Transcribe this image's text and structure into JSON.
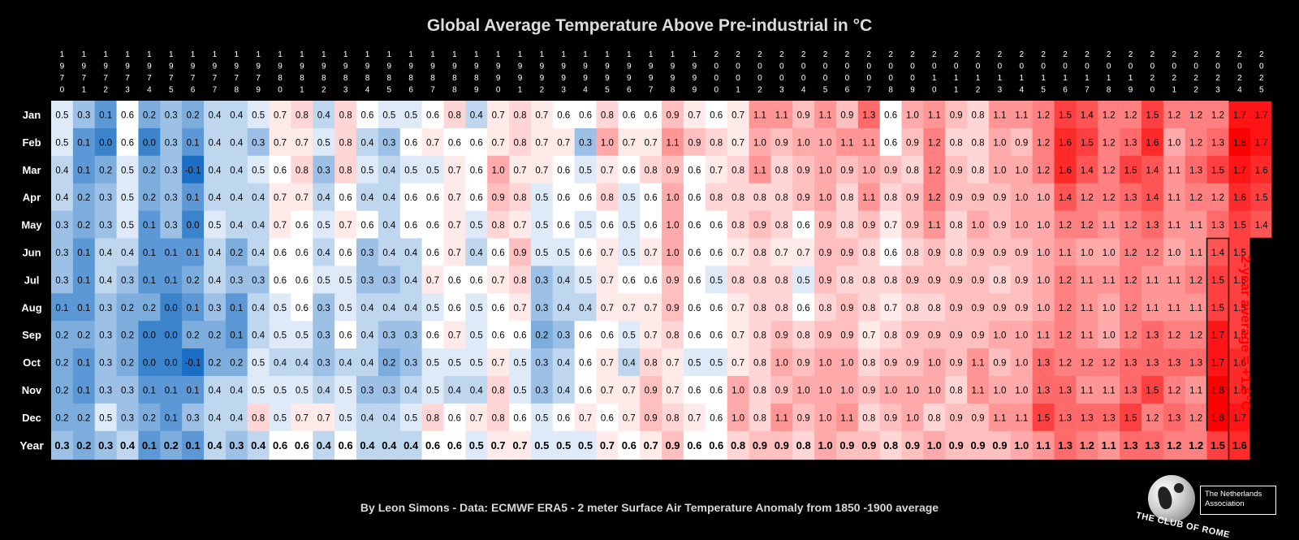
{
  "title": "Global Average Temperature Above Pre-industrial in °C",
  "footer": "By Leon Simons - Data: ECMWF ERA5 - 2 meter Surface Air Temperature Anomaly from 1850 -1900 average",
  "annotation": "2-year average = +1.6°C",
  "logo": {
    "name": "THE CLUB OF ROME",
    "association": "The Netherlands Association"
  },
  "colors": {
    "cold": "#1a6fc4",
    "neutral": "#ffffff",
    "warm": "#ff0000",
    "annotation": "#ff0000"
  },
  "chart_data": {
    "type": "heatmap",
    "title": "Global Average Temperature Above Pre-industrial in °C",
    "years": [
      1970,
      1971,
      1972,
      1973,
      1974,
      1975,
      1976,
      1977,
      1978,
      1979,
      1980,
      1981,
      1982,
      1983,
      1984,
      1985,
      1986,
      1987,
      1988,
      1989,
      1990,
      1991,
      1992,
      1993,
      1994,
      1995,
      1996,
      1997,
      1998,
      1999,
      2000,
      2001,
      2002,
      2003,
      2004,
      2005,
      2006,
      2007,
      2008,
      2009,
      2010,
      2011,
      2012,
      2013,
      2014,
      2015,
      2016,
      2017,
      2018,
      2019,
      2020,
      2021,
      2022,
      2023,
      2024,
      2025
    ],
    "rows": [
      {
        "label": "Jan",
        "values": [
          0.5,
          0.3,
          0.1,
          0.6,
          0.2,
          0.3,
          0.2,
          0.4,
          0.4,
          0.5,
          0.7,
          0.8,
          0.4,
          0.8,
          0.6,
          0.5,
          0.5,
          0.6,
          0.8,
          0.4,
          0.7,
          0.8,
          0.7,
          0.6,
          0.6,
          0.8,
          0.6,
          0.6,
          0.9,
          0.7,
          0.6,
          0.7,
          1.1,
          1.1,
          0.9,
          1.1,
          0.9,
          1.3,
          0.6,
          1.0,
          1.1,
          0.9,
          0.8,
          1.1,
          1.1,
          1.2,
          1.5,
          1.4,
          1.2,
          1.2,
          1.5,
          1.2,
          1.2,
          1.2,
          1.7,
          1.7
        ]
      },
      {
        "label": "Feb",
        "values": [
          0.5,
          0.1,
          0.0,
          0.6,
          0.0,
          0.3,
          0.1,
          0.4,
          0.4,
          0.3,
          0.7,
          0.7,
          0.5,
          0.8,
          0.4,
          0.3,
          0.6,
          0.7,
          0.6,
          0.6,
          0.7,
          0.8,
          0.7,
          0.7,
          0.3,
          1.0,
          0.7,
          0.7,
          1.1,
          0.9,
          0.8,
          0.7,
          1.0,
          0.9,
          1.0,
          1.0,
          1.1,
          1.1,
          0.6,
          0.9,
          1.2,
          0.8,
          0.8,
          1.0,
          0.9,
          1.2,
          1.6,
          1.5,
          1.2,
          1.3,
          1.6,
          1.0,
          1.2,
          1.3,
          1.8,
          1.7
        ]
      },
      {
        "label": "Mar",
        "values": [
          0.4,
          0.1,
          0.2,
          0.5,
          0.2,
          0.3,
          -0.1,
          0.4,
          0.4,
          0.5,
          0.6,
          0.8,
          0.3,
          0.8,
          0.5,
          0.4,
          0.5,
          0.5,
          0.7,
          0.6,
          1.0,
          0.7,
          0.7,
          0.6,
          0.5,
          0.7,
          0.6,
          0.8,
          0.9,
          0.6,
          0.7,
          0.8,
          1.1,
          0.8,
          0.9,
          1.0,
          0.9,
          1.0,
          0.9,
          0.8,
          1.2,
          0.9,
          0.8,
          1.0,
          1.0,
          1.2,
          1.6,
          1.4,
          1.2,
          1.5,
          1.4,
          1.1,
          1.3,
          1.5,
          1.7,
          1.6
        ]
      },
      {
        "label": "Apr",
        "values": [
          0.4,
          0.2,
          0.3,
          0.5,
          0.2,
          0.3,
          0.1,
          0.4,
          0.4,
          0.4,
          0.7,
          0.7,
          0.4,
          0.6,
          0.4,
          0.4,
          0.6,
          0.6,
          0.7,
          0.6,
          0.9,
          0.8,
          0.5,
          0.6,
          0.6,
          0.8,
          0.5,
          0.6,
          1.0,
          0.6,
          0.8,
          0.8,
          0.8,
          0.8,
          0.9,
          1.0,
          0.8,
          1.1,
          0.8,
          0.9,
          1.2,
          0.9,
          0.9,
          0.9,
          1.0,
          1.0,
          1.4,
          1.2,
          1.2,
          1.3,
          1.4,
          1.1,
          1.2,
          1.2,
          1.6,
          1.5
        ]
      },
      {
        "label": "May",
        "values": [
          0.3,
          0.2,
          0.3,
          0.5,
          0.1,
          0.3,
          0.0,
          0.5,
          0.4,
          0.4,
          0.7,
          0.6,
          0.5,
          0.7,
          0.6,
          0.4,
          0.6,
          0.6,
          0.7,
          0.5,
          0.8,
          0.7,
          0.5,
          0.6,
          0.5,
          0.6,
          0.5,
          0.6,
          1.0,
          0.6,
          0.6,
          0.8,
          0.9,
          0.8,
          0.6,
          0.9,
          0.8,
          0.9,
          0.7,
          0.9,
          1.1,
          0.8,
          1.0,
          0.9,
          1.0,
          1.0,
          1.2,
          1.2,
          1.1,
          1.2,
          1.3,
          1.1,
          1.1,
          1.3,
          1.5,
          1.4
        ]
      },
      {
        "label": "Jun",
        "values": [
          0.3,
          0.1,
          0.4,
          0.4,
          0.1,
          0.1,
          0.1,
          0.4,
          0.2,
          0.4,
          0.6,
          0.6,
          0.4,
          0.6,
          0.3,
          0.4,
          0.4,
          0.6,
          0.7,
          0.4,
          0.6,
          0.9,
          0.5,
          0.5,
          0.6,
          0.7,
          0.5,
          0.7,
          1.0,
          0.6,
          0.6,
          0.7,
          0.8,
          0.7,
          0.7,
          0.9,
          0.9,
          0.8,
          0.6,
          0.8,
          0.9,
          0.8,
          0.9,
          0.9,
          0.9,
          1.0,
          1.1,
          1.0,
          1.0,
          1.2,
          1.2,
          1.0,
          1.1,
          1.4,
          1.5
        ]
      },
      {
        "label": "Jul",
        "values": [
          0.3,
          0.1,
          0.4,
          0.3,
          0.1,
          0.1,
          0.2,
          0.4,
          0.3,
          0.3,
          0.6,
          0.6,
          0.5,
          0.5,
          0.3,
          0.3,
          0.4,
          0.7,
          0.6,
          0.6,
          0.7,
          0.8,
          0.3,
          0.4,
          0.5,
          0.7,
          0.6,
          0.6,
          0.9,
          0.6,
          0.5,
          0.8,
          0.8,
          0.8,
          0.5,
          0.9,
          0.8,
          0.8,
          0.8,
          0.9,
          0.9,
          0.9,
          0.9,
          0.8,
          0.9,
          1.0,
          1.2,
          1.1,
          1.1,
          1.2,
          1.1,
          1.1,
          1.2,
          1.5,
          1.5
        ]
      },
      {
        "label": "Aug",
        "values": [
          0.1,
          0.1,
          0.3,
          0.2,
          0.2,
          0.0,
          0.1,
          0.3,
          0.1,
          0.4,
          0.5,
          0.6,
          0.3,
          0.5,
          0.4,
          0.4,
          0.4,
          0.5,
          0.6,
          0.5,
          0.6,
          0.7,
          0.3,
          0.4,
          0.4,
          0.7,
          0.7,
          0.7,
          0.9,
          0.6,
          0.6,
          0.7,
          0.8,
          0.8,
          0.6,
          0.8,
          0.9,
          0.8,
          0.7,
          0.8,
          0.8,
          0.9,
          0.9,
          0.9,
          0.9,
          1.0,
          1.2,
          1.1,
          1.0,
          1.2,
          1.1,
          1.1,
          1.1,
          1.5,
          1.5
        ]
      },
      {
        "label": "Sep",
        "values": [
          0.2,
          0.2,
          0.3,
          0.2,
          0.0,
          0.0,
          0.2,
          0.2,
          0.1,
          0.4,
          0.5,
          0.5,
          0.3,
          0.6,
          0.4,
          0.3,
          0.3,
          0.6,
          0.7,
          0.5,
          0.6,
          0.6,
          0.2,
          0.3,
          0.6,
          0.6,
          0.5,
          0.7,
          0.8,
          0.6,
          0.6,
          0.7,
          0.8,
          0.9,
          0.8,
          0.9,
          0.9,
          0.7,
          0.8,
          0.9,
          0.9,
          0.9,
          0.9,
          1.0,
          1.0,
          1.1,
          1.2,
          1.1,
          1.0,
          1.2,
          1.3,
          1.2,
          1.2,
          1.7,
          1.5
        ]
      },
      {
        "label": "Oct",
        "values": [
          0.2,
          0.1,
          0.3,
          0.2,
          0.0,
          0.0,
          -0.1,
          0.2,
          0.2,
          0.5,
          0.4,
          0.4,
          0.3,
          0.4,
          0.4,
          0.2,
          0.3,
          0.5,
          0.5,
          0.5,
          0.7,
          0.5,
          0.3,
          0.4,
          0.6,
          0.7,
          0.4,
          0.8,
          0.7,
          0.5,
          0.5,
          0.7,
          0.8,
          1.0,
          0.9,
          1.0,
          1.0,
          0.8,
          0.9,
          0.9,
          1.0,
          0.9,
          1.1,
          0.9,
          1.0,
          1.3,
          1.2,
          1.2,
          1.2,
          1.3,
          1.3,
          1.3,
          1.3,
          1.7,
          1.6
        ]
      },
      {
        "label": "Nov",
        "values": [
          0.2,
          0.1,
          0.3,
          0.3,
          0.1,
          0.1,
          0.1,
          0.4,
          0.4,
          0.5,
          0.5,
          0.5,
          0.4,
          0.5,
          0.3,
          0.3,
          0.4,
          0.5,
          0.4,
          0.4,
          0.8,
          0.5,
          0.3,
          0.4,
          0.6,
          0.7,
          0.7,
          0.9,
          0.7,
          0.6,
          0.6,
          1.0,
          0.8,
          0.9,
          1.0,
          1.0,
          1.0,
          0.9,
          1.0,
          1.0,
          1.0,
          0.8,
          1.1,
          1.0,
          1.0,
          1.3,
          1.3,
          1.1,
          1.1,
          1.3,
          1.5,
          1.2,
          1.1,
          1.8,
          1.6
        ]
      },
      {
        "label": "Dec",
        "values": [
          0.2,
          0.2,
          0.5,
          0.3,
          0.2,
          0.1,
          0.3,
          0.4,
          0.4,
          0.8,
          0.5,
          0.7,
          0.7,
          0.5,
          0.4,
          0.4,
          0.5,
          0.8,
          0.6,
          0.7,
          0.8,
          0.6,
          0.5,
          0.6,
          0.7,
          0.6,
          0.7,
          0.9,
          0.8,
          0.7,
          0.6,
          1.0,
          0.8,
          1.1,
          0.9,
          1.0,
          1.1,
          0.8,
          0.9,
          1.0,
          0.8,
          0.9,
          0.9,
          1.1,
          1.1,
          1.5,
          1.3,
          1.3,
          1.3,
          1.5,
          1.2,
          1.3,
          1.2,
          1.8,
          1.7
        ]
      },
      {
        "label": "Year",
        "values": [
          0.3,
          0.2,
          0.3,
          0.4,
          0.1,
          0.2,
          0.1,
          0.4,
          0.3,
          0.4,
          0.6,
          0.6,
          0.4,
          0.6,
          0.4,
          0.4,
          0.4,
          0.6,
          0.6,
          0.5,
          0.7,
          0.7,
          0.5,
          0.5,
          0.5,
          0.7,
          0.6,
          0.7,
          0.9,
          0.6,
          0.6,
          0.8,
          0.9,
          0.9,
          0.8,
          1.0,
          0.9,
          0.9,
          0.8,
          0.9,
          1.0,
          0.9,
          0.9,
          0.9,
          1.0,
          1.1,
          1.3,
          1.2,
          1.1,
          1.3,
          1.3,
          1.2,
          1.2,
          1.5,
          1.6
        ]
      }
    ],
    "color_scale": {
      "min": -0.1,
      "mid": 0.6,
      "max": 1.8
    }
  }
}
